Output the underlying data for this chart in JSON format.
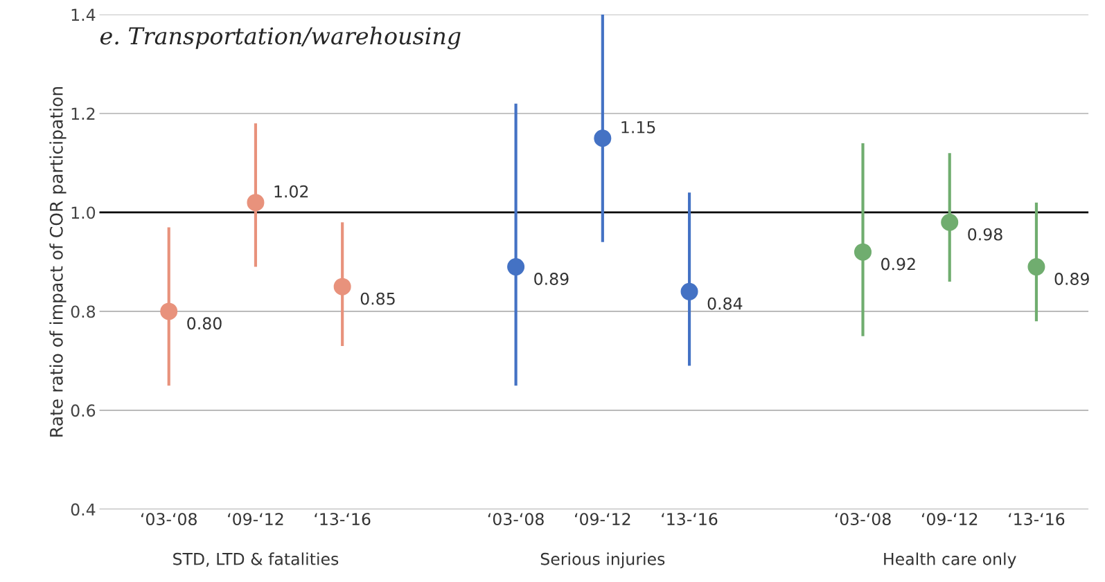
{
  "chart_data": {
    "type": "scatter",
    "title": "e. Transportation/warehousing",
    "ylabel": "Rate ratio of impact of COR participation",
    "categories": [
      "‘03-‘08",
      "‘09-‘12",
      "‘13-‘16",
      null,
      "‘03-‘08",
      "‘09-‘12",
      "‘13-‘16",
      null,
      "‘03-‘08",
      "‘09-‘12",
      "‘13-‘16"
    ],
    "series": [
      {
        "color": "#e8927c",
        "values": [
          0.8,
          1.02,
          0.85,
          null,
          null,
          null,
          null,
          null,
          null,
          null,
          null
        ],
        "value_labels": [
          "0.80",
          "1.02",
          "0.85",
          null,
          null,
          null,
          null,
          null,
          null,
          null,
          null
        ],
        "errors": [
          [
            0.65,
            0.97
          ],
          [
            0.89,
            1.18
          ],
          [
            0.73,
            0.98
          ],
          null,
          null,
          null,
          null,
          null,
          null,
          null,
          null
        ]
      },
      {
        "color": "#4472c4",
        "values": [
          null,
          null,
          null,
          null,
          0.89,
          1.15,
          0.84,
          null,
          null,
          null,
          null
        ],
        "value_labels": [
          null,
          null,
          null,
          null,
          "0.89",
          "1.15",
          "0.84",
          null,
          null,
          null,
          null
        ],
        "errors": [
          null,
          null,
          null,
          null,
          [
            0.65,
            1.22
          ],
          [
            0.94,
            1.4
          ],
          [
            0.69,
            1.04
          ],
          null,
          null,
          null,
          null
        ]
      },
      {
        "color": "#70ad6f",
        "values": [
          null,
          null,
          null,
          null,
          null,
          null,
          null,
          null,
          0.92,
          0.98,
          0.89
        ],
        "value_labels": [
          null,
          null,
          null,
          null,
          null,
          null,
          null,
          null,
          "0.92",
          "0.98",
          "0.89"
        ],
        "errors": [
          null,
          null,
          null,
          null,
          null,
          null,
          null,
          null,
          [
            0.75,
            1.14
          ],
          [
            0.86,
            1.12
          ],
          [
            0.78,
            1.02
          ]
        ]
      }
    ],
    "annotations": [
      "STD, LTD & fatalities",
      "Serious injuries",
      "Health care only"
    ],
    "ylim": [
      0.4,
      1.4
    ],
    "yticks": [
      0.4,
      0.6,
      0.8,
      {
        "value": 1.0,
        "label": "1.0"
      },
      1.2,
      1.4
    ],
    "ref_lines": [
      {
        "axis": "y",
        "value": 1.0,
        "color": "#000000"
      }
    ],
    "grid": "y",
    "marker": "circle"
  }
}
